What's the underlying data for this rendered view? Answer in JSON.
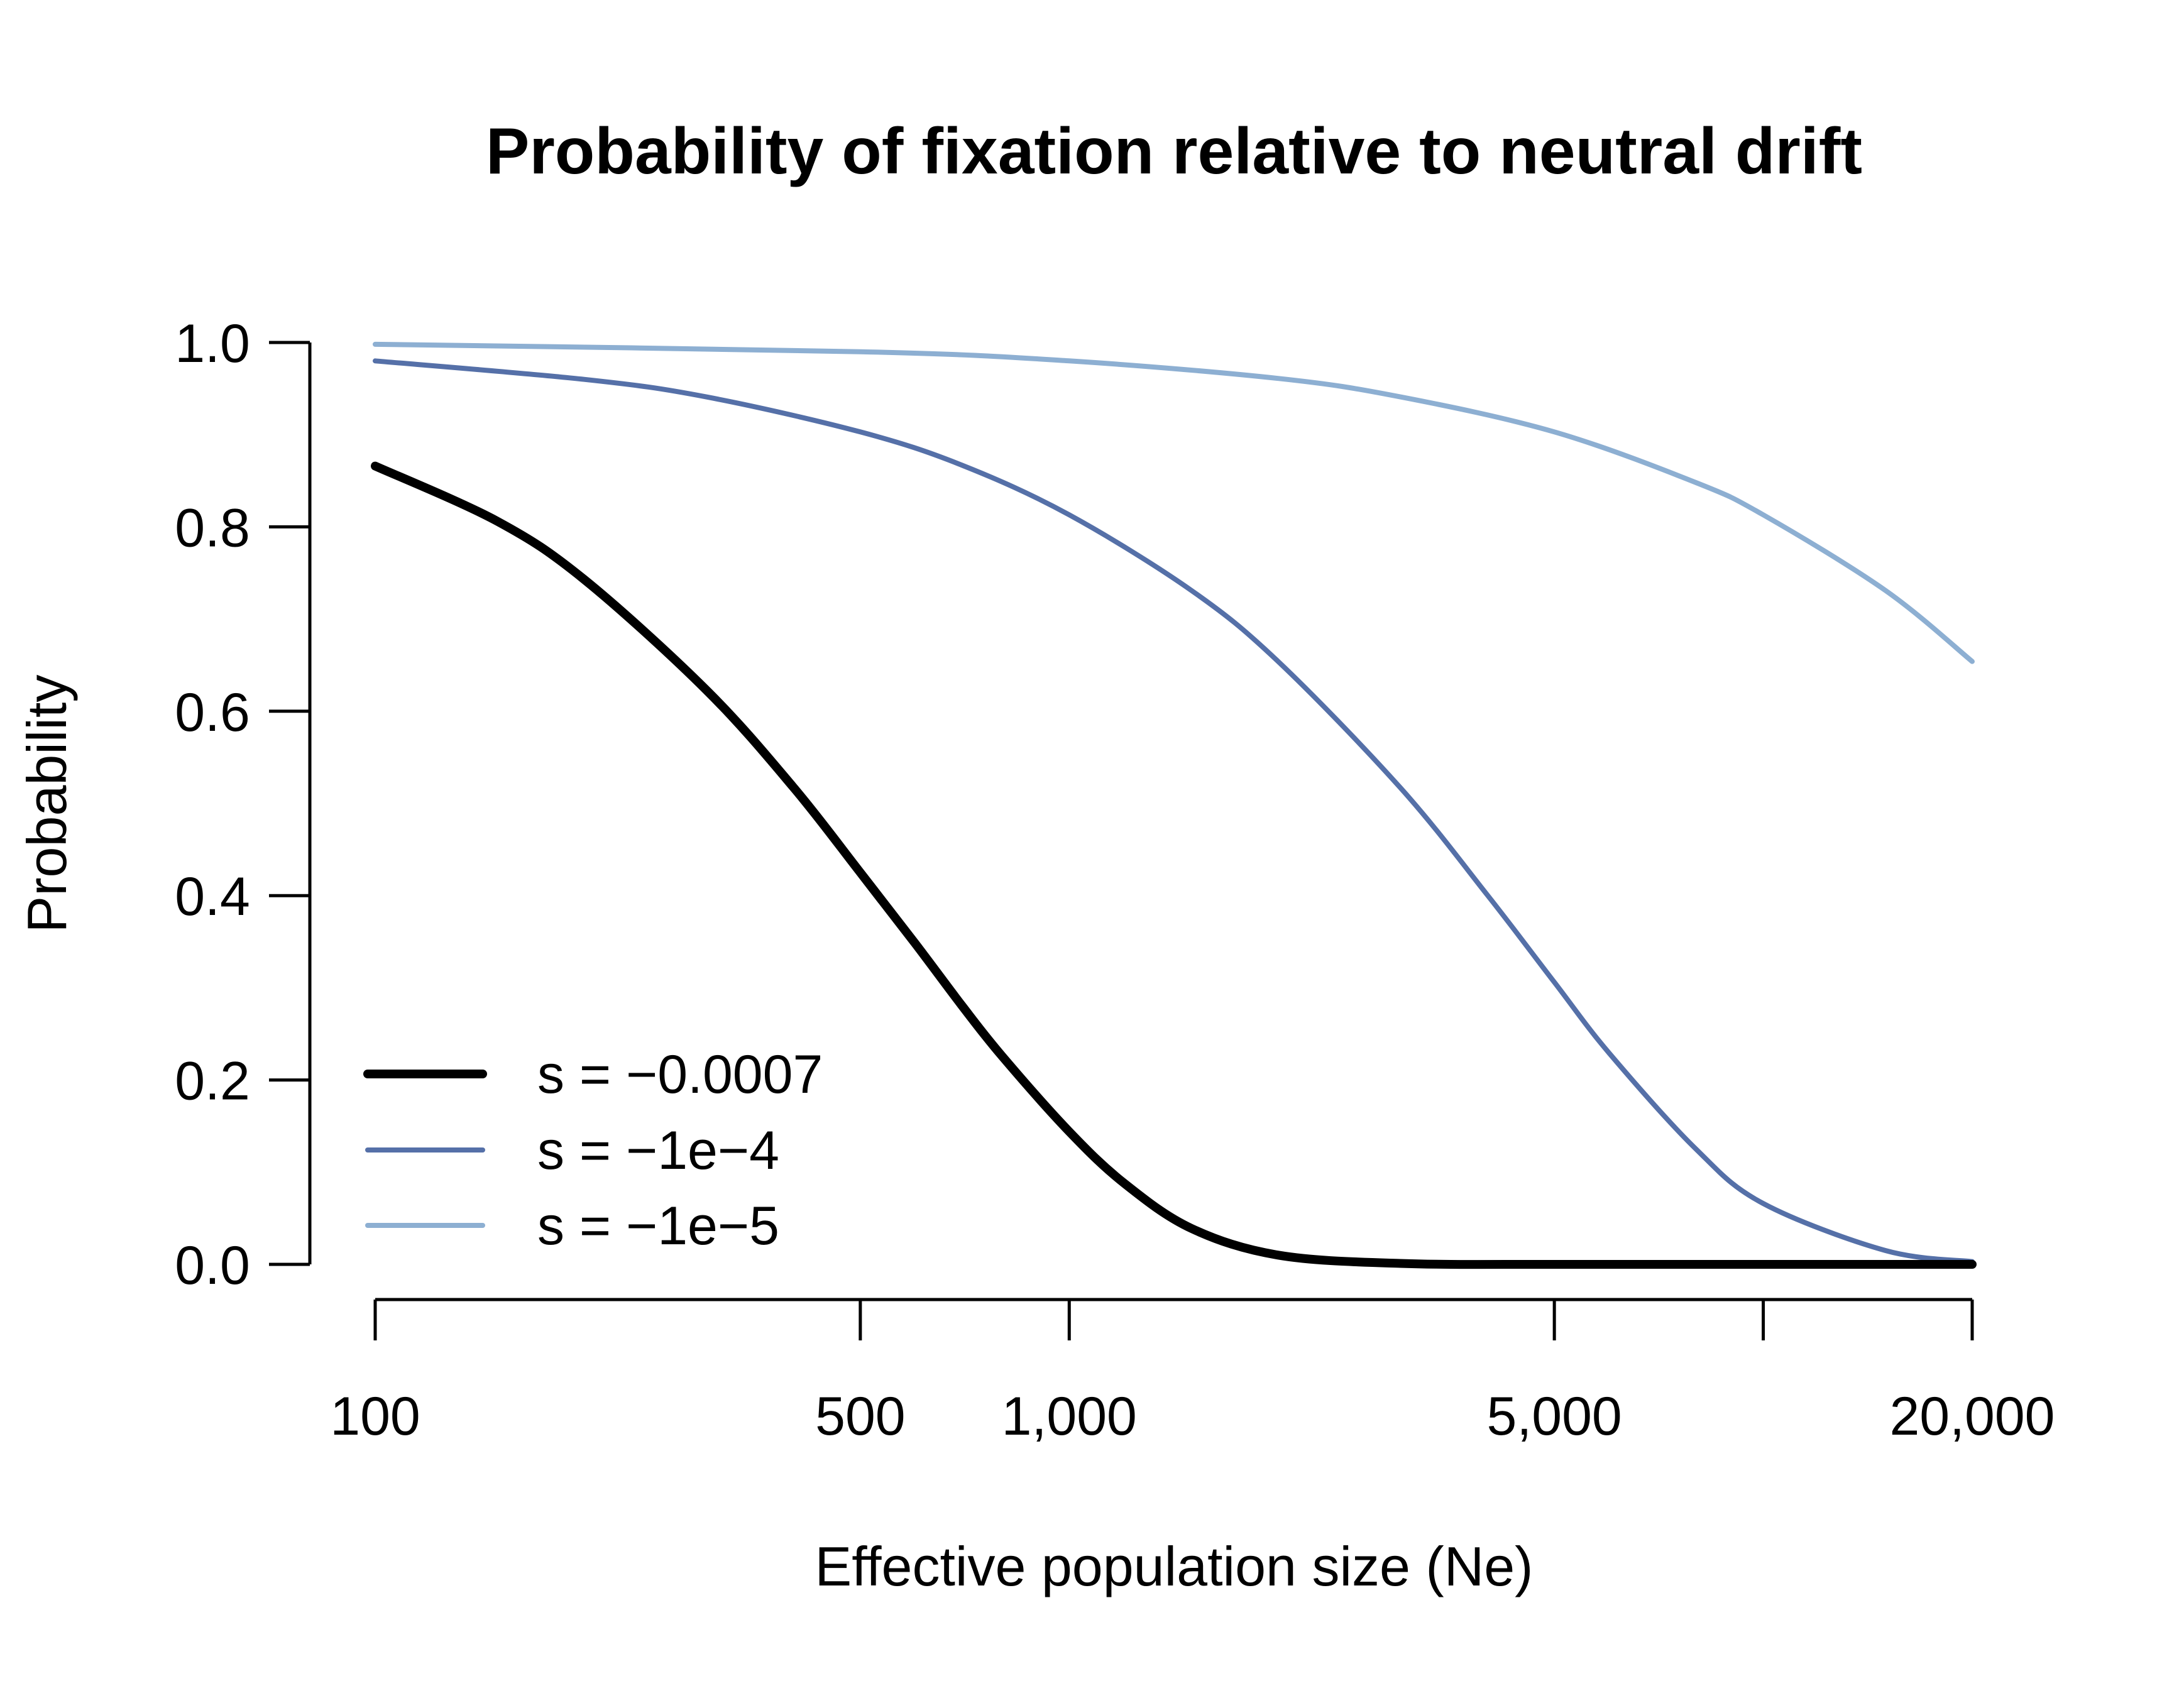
{
  "chart_data": {
    "type": "line",
    "title": "Probability of fixation relative to neutral drift",
    "xlabel": "Effective population size (Ne)",
    "ylabel": "Probability",
    "x_scale": "log",
    "xlim": [
      100,
      20000
    ],
    "ylim": [
      0,
      1
    ],
    "x_ticks": [
      {
        "value": 100,
        "label": "100"
      },
      {
        "value": 500,
        "label": "500"
      },
      {
        "value": 1000,
        "label": "1,000"
      },
      {
        "value": 5000,
        "label": "5,000"
      },
      {
        "value": 10000,
        "label": ""
      },
      {
        "value": 20000,
        "label": "20,000"
      }
    ],
    "y_ticks": [
      {
        "value": 0.0,
        "label": "0.0"
      },
      {
        "value": 0.2,
        "label": "0.2"
      },
      {
        "value": 0.4,
        "label": "0.4"
      },
      {
        "value": 0.6,
        "label": "0.6"
      },
      {
        "value": 0.8,
        "label": "0.8"
      },
      {
        "value": 1.0,
        "label": "1.0"
      }
    ],
    "grid": false,
    "legend_position": "bottom-left",
    "series": [
      {
        "name": "s = −0.0007",
        "color": "#000000",
        "line_width": "thick",
        "x": [
          100,
          150,
          200,
          300,
          400,
          500,
          600,
          700,
          800,
          1000,
          1200,
          1500,
          2000,
          3000,
          5000,
          10000,
          20000
        ],
        "y": [
          0.866,
          0.806,
          0.743,
          0.623,
          0.518,
          0.425,
          0.348,
          0.281,
          0.226,
          0.144,
          0.088,
          0.039,
          0.01,
          0.001,
          0.0,
          0.0,
          0.0
        ]
      },
      {
        "name": "s = −1e−4",
        "color": "#5570a8",
        "line_width": "medium",
        "x": [
          100,
          200,
          300,
          500,
          700,
          1000,
          1500,
          2000,
          3000,
          4000,
          5000,
          6000,
          8000,
          10000,
          15000,
          20000
        ],
        "y": [
          0.98,
          0.96,
          0.941,
          0.903,
          0.867,
          0.813,
          0.731,
          0.654,
          0.517,
          0.401,
          0.306,
          0.229,
          0.125,
          0.066,
          0.015,
          0.003
        ]
      },
      {
        "name": "s = −1e−5",
        "color": "#8dafd2",
        "line_width": "medium",
        "x": [
          100,
          500,
          1000,
          2000,
          3000,
          5000,
          8000,
          10000,
          15000,
          20000
        ],
        "y": [
          0.998,
          0.99,
          0.98,
          0.961,
          0.941,
          0.903,
          0.848,
          0.813,
          0.731,
          0.654
        ]
      }
    ]
  }
}
